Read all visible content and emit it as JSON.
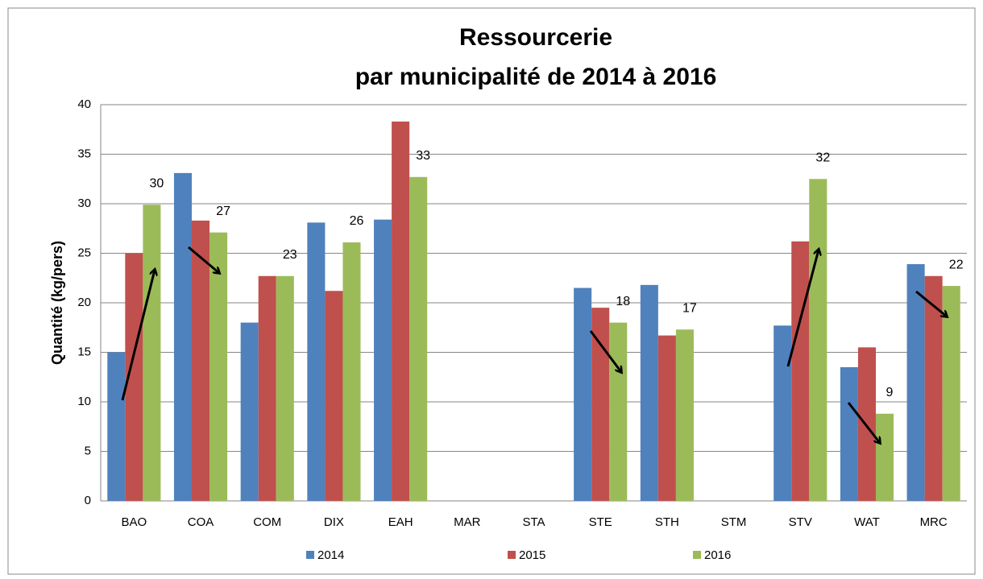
{
  "chart_data": {
    "type": "bar",
    "title": "Ressourcerie",
    "subtitle": "par municipalité de 2014 à 2016",
    "y_label": "Quantité (kg/pers)",
    "categories": [
      "BAO",
      "COA",
      "COM",
      "DIX",
      "EAH",
      "MAR",
      "STA",
      "STE",
      "STH",
      "STM",
      "STV",
      "WAT",
      "MRC"
    ],
    "series": [
      {
        "name": "2014",
        "color": "#4f81bd",
        "values": [
          15,
          33.1,
          18,
          28.1,
          28.4,
          null,
          null,
          21.5,
          21.8,
          null,
          17.7,
          13.5,
          23.9
        ]
      },
      {
        "name": "2015",
        "color": "#c0504d",
        "values": [
          25,
          28.3,
          22.7,
          21.2,
          38.3,
          null,
          null,
          19.5,
          16.7,
          null,
          26.2,
          15.5,
          22.7
        ]
      },
      {
        "name": "2016",
        "color": "#9bbb59",
        "values": [
          29.9,
          27.1,
          22.7,
          26.1,
          32.7,
          null,
          null,
          18,
          17.3,
          null,
          32.5,
          8.8,
          21.7
        ],
        "value_labels": [
          "30",
          "27",
          "23",
          "26",
          "33",
          null,
          null,
          "18",
          "17",
          null,
          "32",
          "9",
          "22"
        ]
      }
    ],
    "ylim": [
      0,
      40
    ],
    "yticks": [
      0,
      5,
      10,
      15,
      20,
      25,
      30,
      35,
      40
    ],
    "grid": true,
    "legend": "bottom"
  }
}
